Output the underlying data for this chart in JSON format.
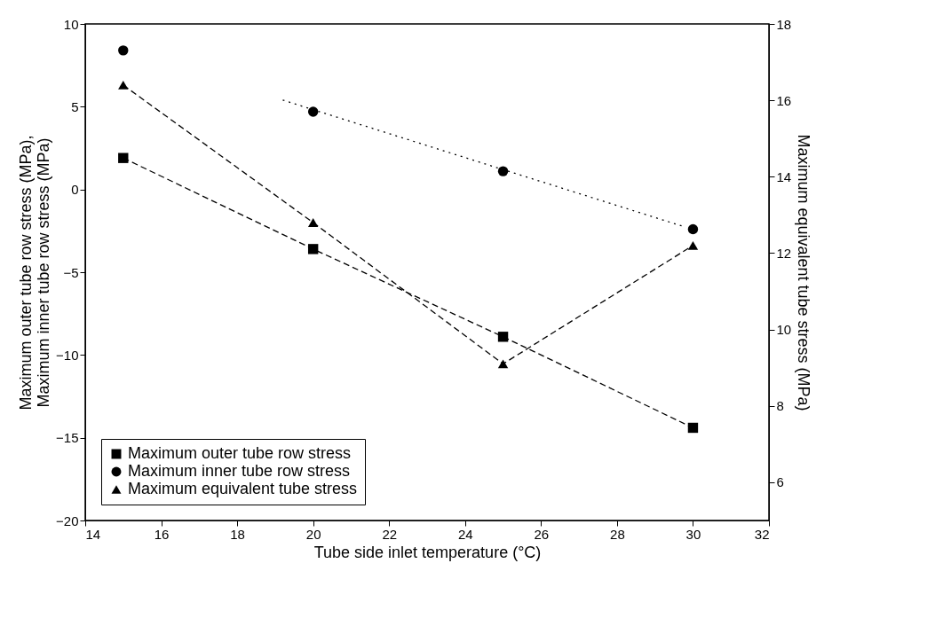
{
  "chart_data": {
    "type": "line",
    "xlabel": "Tube side inlet temperature (°C)",
    "ylabel": "Maximum outer tube row stress (MPa),\nMaximum inner tube row stress (MPa)",
    "y2label": "Maximum equivalent tube stress (MPa)",
    "x": [
      15,
      20,
      25,
      30
    ],
    "series": [
      {
        "name": "Maximum outer tube row stress",
        "color": "#000000",
        "values": [
          1.9,
          -3.6,
          -8.9,
          -14.4
        ],
        "marker": "square",
        "line_style": "dashed"
      },
      {
        "name": "Maximum inner tube row stress",
        "color": "#000000",
        "values": [
          8.4,
          4.7,
          1.1,
          -2.4
        ],
        "type": "scatter",
        "marker": "circle"
      },
      {
        "name": "Maximum equivalent tube stress",
        "color": "#000000",
        "values": [
          16.4,
          12.8,
          9.1,
          12.2
        ],
        "marker": "triangle",
        "line_style": "dashed",
        "axis": "y2"
      },
      {
        "color": "#000000",
        "x": [
          19.2,
          29.7
        ],
        "values": [
          5.4,
          -2.2
        ],
        "marker": "none",
        "line_style": "dotted"
      }
    ],
    "xlim": [
      14,
      32
    ],
    "xticks": [
      14,
      16,
      18,
      20,
      22,
      24,
      26,
      28,
      30,
      32
    ],
    "ylim": [
      -20,
      10
    ],
    "yticks": [
      -20,
      -15,
      -10,
      -5,
      0,
      5,
      10
    ],
    "y2lim": [
      5,
      18
    ],
    "y2ticks": [
      6,
      8,
      10,
      12,
      14,
      16,
      18
    ],
    "grid": false,
    "legend": "bottom left"
  }
}
